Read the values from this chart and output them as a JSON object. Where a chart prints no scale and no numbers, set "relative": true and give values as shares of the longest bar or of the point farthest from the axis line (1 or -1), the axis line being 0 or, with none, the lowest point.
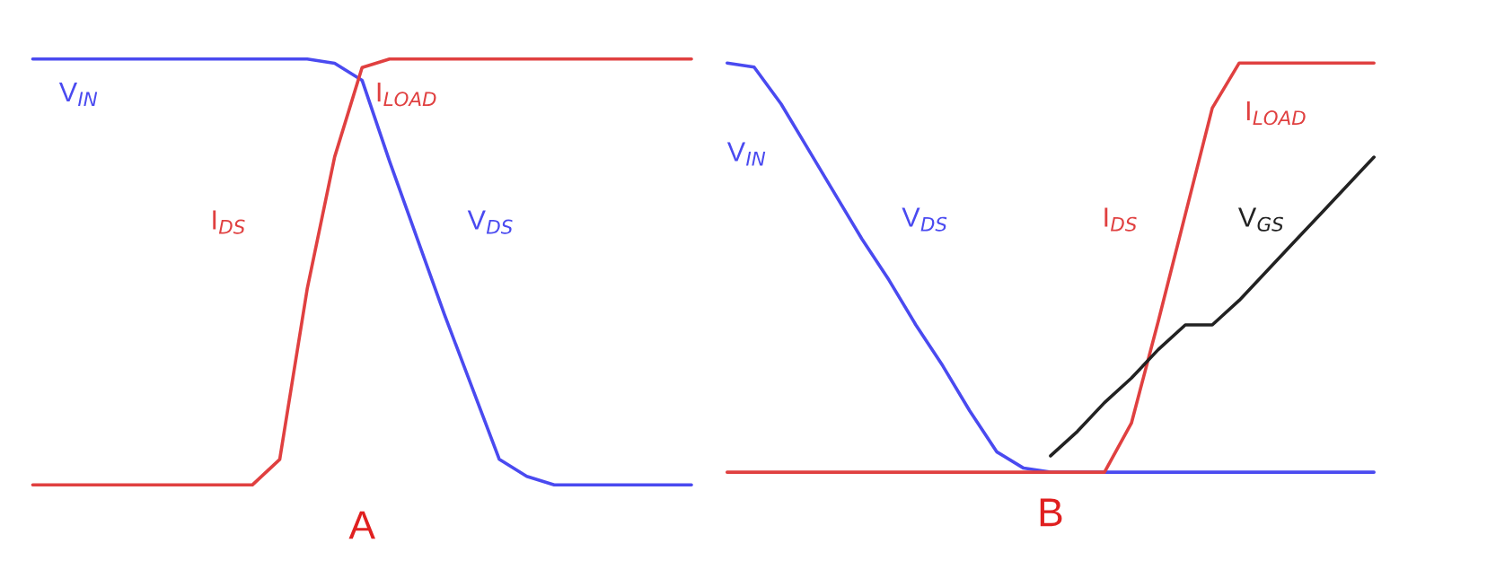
{
  "chart_data": [
    {
      "type": "line",
      "relative": true,
      "xlabel": "A",
      "legend": false,
      "tick_labels": false,
      "categories": [
        null,
        null,
        null,
        null,
        null,
        null,
        null,
        null,
        null,
        null,
        null,
        null,
        null,
        null,
        null,
        null,
        null,
        null,
        null,
        null,
        null,
        null,
        null,
        null,
        null
      ],
      "series": [
        {
          "name": "V$_{DS}$",
          "color": "#4a4af0",
          "values": [
            1,
            1,
            1,
            1,
            1,
            1,
            1,
            1,
            1,
            1,
            1,
            0.99,
            0.95,
            0.76,
            0.58,
            0.4,
            0.23,
            0.06,
            0.02,
            0,
            0,
            0,
            0,
            0,
            0
          ]
        },
        {
          "name": "I$_{DS}$",
          "color": "#e04040",
          "values": [
            0,
            0,
            0,
            0,
            0,
            0,
            0,
            0,
            0,
            0.06,
            0.46,
            0.77,
            0.98,
            1,
            1,
            1,
            1,
            1,
            1,
            1,
            1,
            1,
            1,
            1,
            1
          ]
        }
      ],
      "annotations": [
        "V$_{IN}$",
        "I$_{LOAD}$"
      ]
    },
    {
      "type": "line",
      "relative": true,
      "xlabel": "B",
      "legend": false,
      "tick_labels": false,
      "categories": [
        null,
        null,
        null,
        null,
        null,
        null,
        null,
        null,
        null,
        null,
        null,
        null,
        null,
        null,
        null,
        null,
        null,
        null,
        null,
        null,
        null,
        null,
        null,
        null,
        null
      ],
      "series": [
        {
          "name": "V$_{DS}$",
          "color": "#4a4af0",
          "values": [
            1,
            0.99,
            0.9,
            0.79,
            0.68,
            0.57,
            0.47,
            0.36,
            0.26,
            0.15,
            0.05,
            0.01,
            0,
            0,
            0,
            0,
            0,
            0,
            0,
            0,
            0,
            0,
            0,
            0,
            0
          ]
        },
        {
          "name": "I$_{DS}$",
          "color": "#e04040",
          "values": [
            0,
            0,
            0,
            0,
            0,
            0,
            0,
            0,
            0,
            0,
            0,
            0,
            0,
            0,
            0,
            0.12,
            0.37,
            0.63,
            0.89,
            1,
            1,
            1,
            1,
            1,
            1
          ]
        },
        {
          "name": "V$_{GS}$",
          "color": "#222222",
          "values": [
            null,
            null,
            null,
            null,
            null,
            null,
            null,
            null,
            null,
            null,
            null,
            null,
            0.04,
            0.1,
            0.17,
            0.23,
            0.3,
            0.36,
            0.36,
            0.42,
            0.49,
            0.56,
            0.63,
            0.7,
            0.77
          ]
        }
      ],
      "annotations": [
        "V$_{IN}$",
        "I$_{LOAD}$"
      ]
    }
  ]
}
